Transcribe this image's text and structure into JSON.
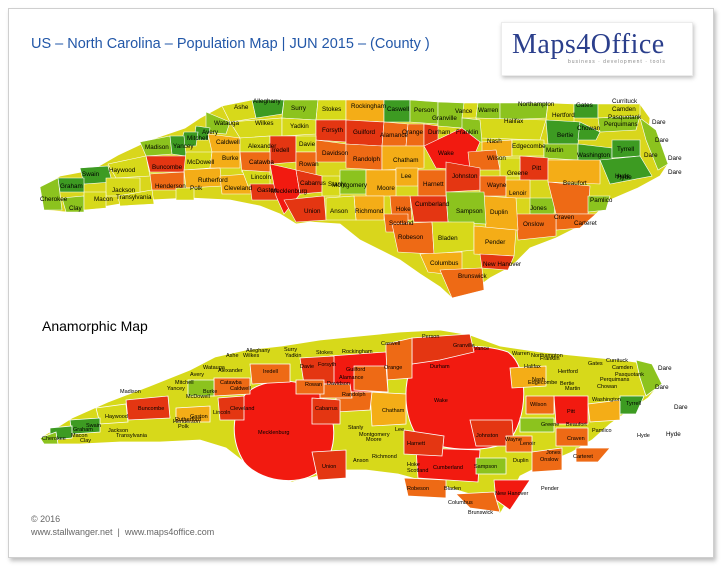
{
  "header": {
    "title": "US – North Carolina – Population Map | JUN 2015 – (County )",
    "title_color": "#2257a8"
  },
  "logo": {
    "text": "Maps4Office",
    "tagline": "business · development · tools",
    "text_color": "#2b3f8c"
  },
  "anamorphic_label": "Anamorphic Map",
  "footer": {
    "copyright": "© 2016",
    "link1": "www.stallwanger.net",
    "separator": "|",
    "link2": "www.maps4office.com"
  },
  "legend_colors": {
    "low": "#3d9b22",
    "low_mid": "#8cc31e",
    "mid": "#d7d91a",
    "mid_high": "#f4ad17",
    "high": "#ee6a15",
    "very_high": "#e43612",
    "top": "#f21a10"
  },
  "maps": {
    "standard": {
      "counties": [
        "Ashe",
        "Alleghany",
        "Surry",
        "Stokes",
        "Rockingham",
        "Caswell",
        "Person",
        "Vance",
        "Warren",
        "Northampton",
        "Gates",
        "Currituck",
        "Camden",
        "Hertford",
        "Pasquotank",
        "Perquimans",
        "Chowan",
        "Bertie",
        "Watauga",
        "Wilkes",
        "Yadkin",
        "Forsyth",
        "Guilford",
        "Alamance",
        "Orange",
        "Durham",
        "Granville",
        "Franklin",
        "Halifax",
        "Avery",
        "Mitchell",
        "Madison",
        "Yancey",
        "Caldwell",
        "Alexander",
        "Iredell",
        "Davie",
        "Davidson",
        "Randolph",
        "Chatham",
        "Wake",
        "Nash",
        "Edgecombe",
        "Martin",
        "Washington",
        "Tyrrell",
        "Dare",
        "Buncombe",
        "McDowell",
        "Burke",
        "Catawba",
        "Rowan",
        "Haywood",
        "Swain",
        "Graham",
        "Jackson",
        "Henderson",
        "Rutherford",
        "Cleveland",
        "Gaston",
        "Lincoln",
        "Mecklenburg",
        "Cabarrus",
        "Stanly",
        "Montgomery",
        "Moore",
        "Lee",
        "Harnett",
        "Johnston",
        "Wilson",
        "Greene",
        "Pitt",
        "Beaufort",
        "Hyde",
        "Cherokee",
        "Clay",
        "Macon",
        "Transylvania",
        "Polk",
        "Union",
        "Anson",
        "Richmond",
        "Hoke",
        "Cumberland",
        "Sampson",
        "Wayne",
        "Lenoir",
        "Jones",
        "Craven",
        "Pamlico",
        "Duplin",
        "Onslow",
        "Carteret",
        "Scotland",
        "Robeson",
        "Bladen",
        "Pender",
        "Columbus",
        "New Hanover",
        "Brunswick"
      ],
      "sea_labels": [
        "Dare",
        "Dare",
        "Dare",
        "Dare",
        "Hyde"
      ]
    },
    "anamorphic": {
      "counties": [
        "Ashe",
        "Alleghany",
        "Surry",
        "Stokes",
        "Rockingham",
        "Caswell",
        "Person",
        "Granville",
        "Vance",
        "Warren",
        "Northampton",
        "Currituck",
        "Camden",
        "Pasquotank",
        "Hertford",
        "Gates",
        "Perquimans",
        "Chowan",
        "Bertie",
        "Halifax",
        "Edgecombe",
        "Martin",
        "Washington",
        "Tyrrell",
        "Watauga",
        "Wilkes",
        "Yadkin",
        "Forsyth",
        "Guilford",
        "Alamance",
        "Orange",
        "Durham",
        "Wake",
        "Franklin",
        "Nash",
        "Wilson",
        "Greene",
        "Pitt",
        "Beaufort",
        "Hyde",
        "Pamlico",
        "Craven",
        "Avery",
        "Mitchell",
        "Yancey",
        "Madison",
        "Alexander",
        "Iredell",
        "Davie",
        "Caldwell",
        "Catawba",
        "Burke",
        "McDowell",
        "Buncombe",
        "Haywood",
        "Rowan",
        "Davidson",
        "Randolph",
        "Chatham",
        "Lee",
        "Johnston",
        "Wayne",
        "Lenoir",
        "Jones",
        "Carteret",
        "Onslow",
        "Duplin",
        "Sampson",
        "Cumberland",
        "Harnett",
        "Moore",
        "Montgomery",
        "Stanly",
        "Cabarrus",
        "Mecklenburg",
        "Union",
        "Gaston",
        "Lincoln",
        "Cleveland",
        "Rutherford",
        "Polk",
        "Henderson",
        "Transylvania",
        "Jackson",
        "Swain",
        "Graham",
        "Cherokee",
        "Clay",
        "Macon",
        "Anson",
        "Richmond",
        "Hoke",
        "Scotland",
        "Robeson",
        "Bladen",
        "Columbus",
        "Brunswick",
        "New Hanover",
        "Pender"
      ],
      "sea_labels": [
        "Dare",
        "Dare",
        "Hyde",
        "Dare"
      ]
    }
  }
}
